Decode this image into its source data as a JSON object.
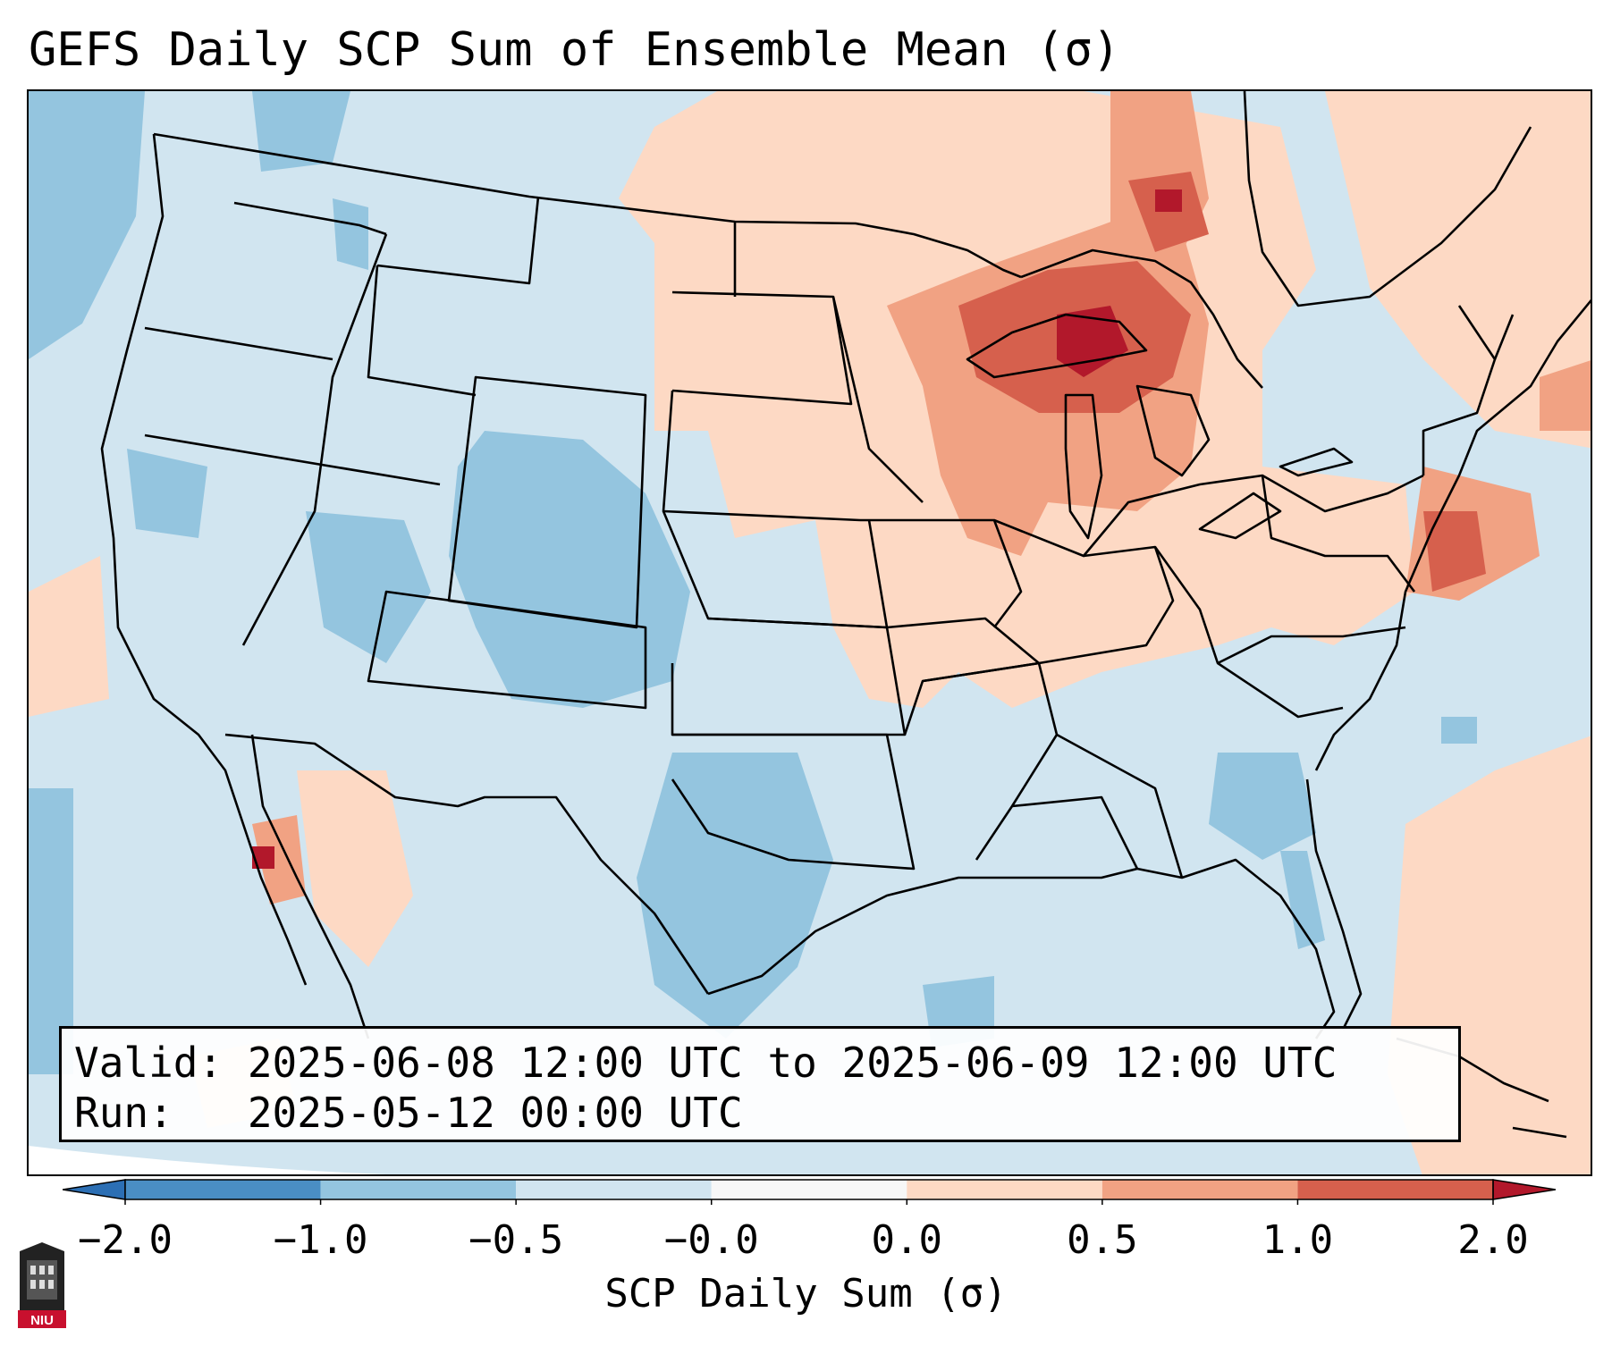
{
  "map": {
    "title": "GEFS Daily SCP Sum of Ensemble Mean (σ)",
    "region": "Contiguous United States",
    "variable": "SCP Daily Sum",
    "info": {
      "valid_line": "Valid: 2025-06-08 12:00 UTC to 2025-06-09 12:00 UTC",
      "run_line": "Run:   2025-05-12 00:00 UTC"
    },
    "colorbar": {
      "label": "SCP Daily Sum (σ)",
      "tick_labels": [
        "−2.0",
        "−1.0",
        "−0.5",
        "−0.0",
        "0.0",
        "0.5",
        "1.0",
        "2.0"
      ],
      "bins": [
        {
          "range": "< -2.0",
          "color": "#2c6fb4"
        },
        {
          "range": "-2.0 to -1.0",
          "color": "#4a8ec4"
        },
        {
          "range": "-1.0 to -0.5",
          "color": "#94c5df"
        },
        {
          "range": "-0.5 to 0.0",
          "color": "#d1e5f0"
        },
        {
          "range": "0.0",
          "color": "#f7f7f7"
        },
        {
          "range": "0.0 to 0.5",
          "color": "#fdd9c4"
        },
        {
          "range": "0.5 to 1.0",
          "color": "#f1a283"
        },
        {
          "range": "1.0 to 2.0",
          "color": "#d6604d"
        },
        {
          "range": "> 2.0",
          "color": "#b2182b"
        }
      ]
    },
    "regions": [
      {
        "name": "Great Lakes / Upper Midwest",
        "level": "1.0 to 2.0"
      },
      {
        "name": "Lake Superior core",
        "level": "> 2.0"
      },
      {
        "name": "Mid-Atlantic / New Jersey",
        "level": "1.0 to 2.0"
      },
      {
        "name": "Ohio Valley / Northeast",
        "level": "0.0 to 0.5"
      },
      {
        "name": "Northern Plains",
        "level": "0.0 to 0.5"
      },
      {
        "name": "Colorado / Wyoming / Utah",
        "level": "-1.0 to -0.5"
      },
      {
        "name": "Texas",
        "level": "-1.0 to -0.5"
      },
      {
        "name": "Southeast",
        "level": "-0.5 to 0.0"
      }
    ],
    "logo_text": "NIU"
  }
}
